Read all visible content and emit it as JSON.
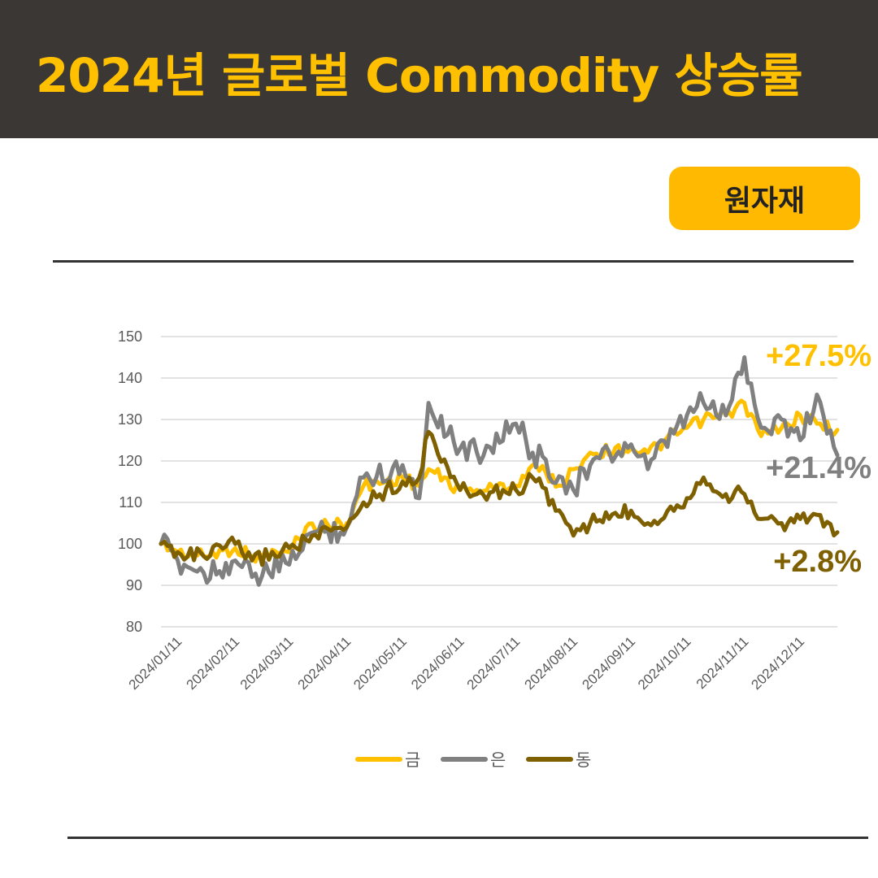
{
  "header": {
    "title": "2024년 글로벌 Commodity 상승률"
  },
  "badge": {
    "label": "원자재"
  },
  "colors": {
    "gold": "#ffc000",
    "silver": "#808080",
    "copper": "#7f6000",
    "header_bg": "#3a3735",
    "badge_bg": "#ffb900"
  },
  "chart_data": {
    "type": "line",
    "title": "",
    "xlabel": "",
    "ylabel": "",
    "ylim": [
      80,
      150
    ],
    "yticks": [
      80,
      90,
      100,
      110,
      120,
      130,
      140,
      150
    ],
    "grid": true,
    "legend_position": "bottom",
    "x_tick_labels": [
      "2024/01/11",
      "2024/02/11",
      "2024/03/11",
      "2024/04/11",
      "2024/05/11",
      "2024/06/11",
      "2024/07/11",
      "2024/08/11",
      "2024/09/11",
      "2024/10/11",
      "2024/11/11",
      "2024/12/11"
    ],
    "x": [
      "2024/01/02",
      "2024/01/11",
      "2024/01/25",
      "2024/02/11",
      "2024/02/20",
      "2024/03/11",
      "2024/03/20",
      "2024/04/11",
      "2024/04/20",
      "2024/05/11",
      "2024/05/20",
      "2024/05/25",
      "2024/06/11",
      "2024/06/20",
      "2024/07/11",
      "2024/07/20",
      "2024/08/05",
      "2024/08/11",
      "2024/08/20",
      "2024/09/11",
      "2024/09/20",
      "2024/10/11",
      "2024/10/20",
      "2024/11/01",
      "2024/11/11",
      "2024/11/20",
      "2024/12/01",
      "2024/12/11",
      "2024/12/20",
      "2024/12/31"
    ],
    "series": [
      {
        "name": "금",
        "values": [
          100,
          98,
          97,
          99,
          97,
          98,
          104,
          105,
          114,
          116,
          114,
          118,
          113,
          113,
          114,
          119,
          114,
          118,
          122,
          123,
          122,
          128,
          130,
          131,
          134,
          126,
          128,
          131,
          129,
          127.5
        ]
      },
      {
        "name": "은",
        "values": [
          100,
          96,
          93,
          96,
          92,
          95,
          102,
          104,
          116,
          119,
          111,
          134,
          123,
          122,
          129,
          122,
          116,
          113,
          119,
          124,
          118,
          131,
          134,
          131,
          145,
          128,
          130,
          125,
          136,
          121.4
        ]
      },
      {
        "name": "동",
        "values": [
          100,
          98,
          97,
          100,
          96,
          99,
          101,
          104,
          110,
          115,
          116,
          127,
          113,
          112,
          113,
          116,
          107,
          102,
          105,
          108,
          105,
          111,
          116,
          112,
          112,
          106,
          105,
          106,
          107,
          102.8
        ]
      }
    ],
    "end_labels": [
      {
        "series": "금",
        "text": "+27.5%"
      },
      {
        "series": "은",
        "text": "+21.4%"
      },
      {
        "series": "동",
        "text": "+2.8%"
      }
    ]
  }
}
